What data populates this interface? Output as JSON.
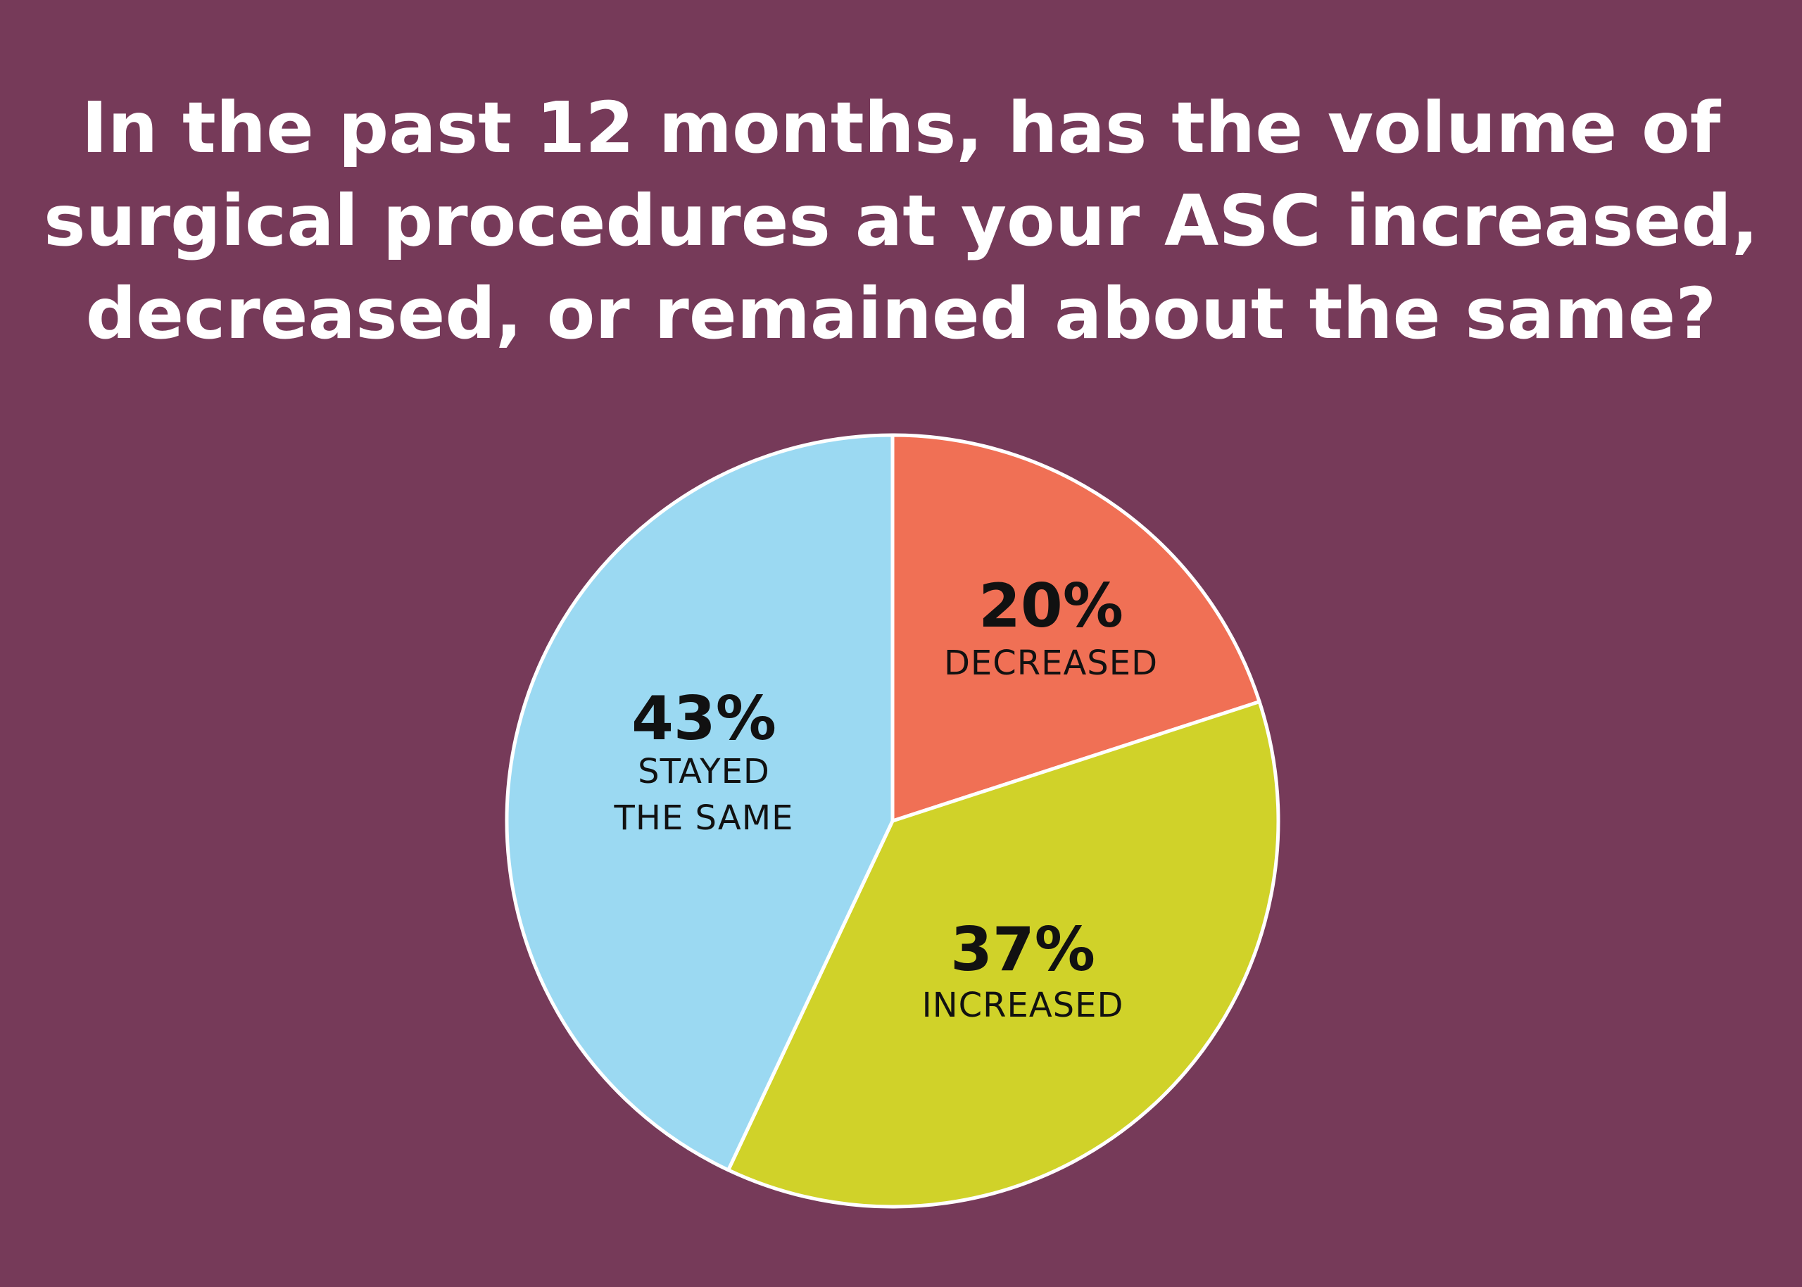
{
  "title": {
    "lines": [
      "In the past 12 months, has the volume of",
      "surgical procedures at your ASC increased,",
      "decreased, or remained about the same?"
    ]
  },
  "colors": {
    "background": "#763a59",
    "title_text": "#ffffff",
    "slice_border": "#ffffff",
    "label_text": "#111111"
  },
  "chart_data": {
    "type": "pie",
    "title": "In the past 12 months, has the volume of surgical procedures at your ASC increased, decreased, or remained about the same?",
    "start": "12 o'clock",
    "direction": "clockwise",
    "slices": [
      {
        "value": 20,
        "percent_label": "20%",
        "label_lines": [
          "DECREASED"
        ],
        "color": "#f07055"
      },
      {
        "value": 37,
        "percent_label": "37%",
        "label_lines": [
          "INCREASED"
        ],
        "color": "#d0d229"
      },
      {
        "value": 43,
        "percent_label": "43%",
        "label_lines": [
          "STAYED",
          "THE SAME"
        ],
        "color": "#9bd9f2"
      }
    ]
  }
}
